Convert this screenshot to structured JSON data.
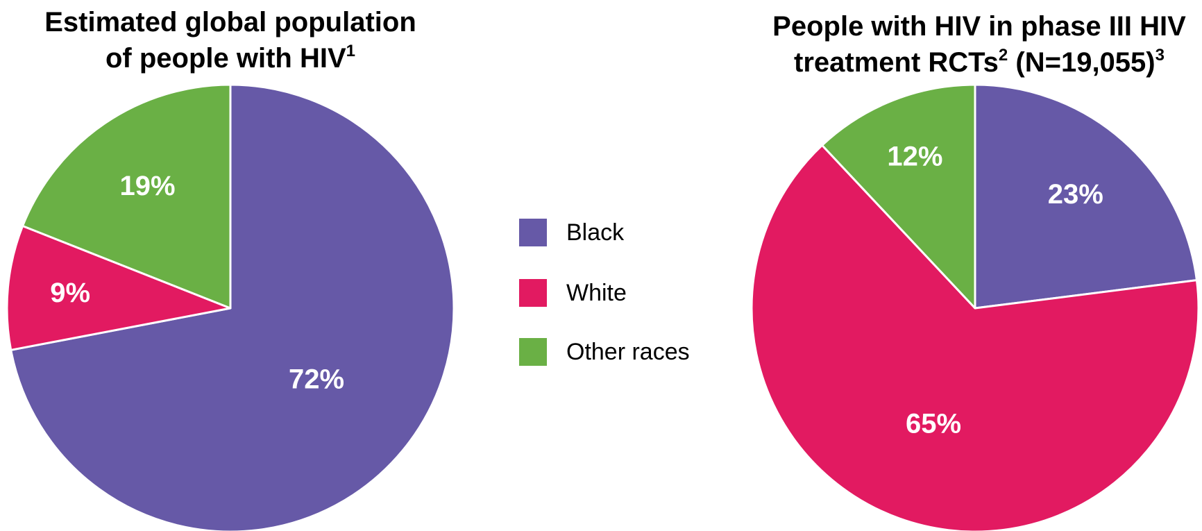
{
  "colors": {
    "black": "#6659a7",
    "white": "#e21a61",
    "other": "#6ab045"
  },
  "legend": [
    {
      "label": "Black",
      "color": "#6659a7"
    },
    {
      "label": "White",
      "color": "#e21a61"
    },
    {
      "label": "Other races",
      "color": "#6ab045"
    }
  ],
  "chart_data": [
    {
      "type": "pie",
      "title": "Estimated global population of people with HIV",
      "title_line1": "Estimated global population",
      "title_line2": "of people with HIV",
      "title_sup": "1",
      "slices": [
        {
          "category": "Black",
          "value": 72,
          "label": "72%",
          "color": "#6659a7"
        },
        {
          "category": "White",
          "value": 9,
          "label": "9%",
          "color": "#e21a61"
        },
        {
          "category": "Other races",
          "value": 19,
          "label": "19%",
          "color": "#6ab045"
        }
      ],
      "start": "12 o'clock",
      "direction": "clockwise"
    },
    {
      "type": "pie",
      "title": "People with HIV in phase III HIV treatment RCTs (N=19,055)",
      "title_line1": "People with HIV in phase III HIV",
      "title_line2a": "treatment RCTs",
      "title_sup_a": "2",
      "title_line2b": " (N=19,055)",
      "title_sup_b": "3",
      "slices": [
        {
          "category": "Black",
          "value": 23,
          "label": "23%",
          "color": "#6659a7"
        },
        {
          "category": "White",
          "value": 65,
          "label": "65%",
          "color": "#e21a61"
        },
        {
          "category": "Other races",
          "value": 12,
          "label": "12%",
          "color": "#6ab045"
        }
      ],
      "start": "12 o'clock",
      "direction": "clockwise"
    }
  ]
}
